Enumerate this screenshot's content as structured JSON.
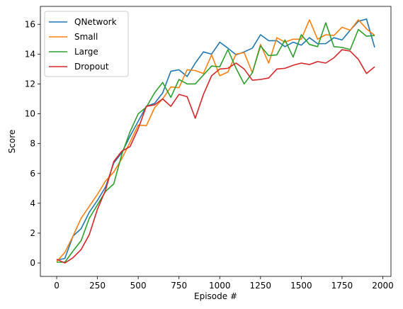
{
  "chart_data": {
    "type": "line",
    "title": "",
    "xlabel": "Episode #",
    "ylabel": "Score",
    "xlim": [
      -100,
      2050
    ],
    "ylim": [
      -0.9,
      17.2
    ],
    "xticks": [
      0,
      250,
      500,
      750,
      1000,
      1250,
      1500,
      1750,
      2000
    ],
    "yticks": [
      0,
      2,
      4,
      6,
      8,
      10,
      12,
      14,
      16
    ],
    "grid": false,
    "legend_position": "top-left",
    "x": [
      0,
      50,
      100,
      150,
      200,
      250,
      300,
      350,
      400,
      450,
      500,
      550,
      600,
      650,
      700,
      750,
      800,
      850,
      900,
      950,
      1000,
      1050,
      1100,
      1150,
      1200,
      1250,
      1300,
      1350,
      1400,
      1450,
      1500,
      1550,
      1600,
      1650,
      1700,
      1750,
      1800,
      1850,
      1900,
      1950
    ],
    "series": [
      {
        "name": "QNetwork",
        "color": "#1f77b4",
        "values": [
          0.2,
          0.3,
          1.8,
          2.3,
          3.4,
          4.2,
          5.1,
          6.7,
          7.4,
          8.5,
          9.5,
          10.5,
          10.7,
          11.4,
          12.85,
          12.95,
          12.5,
          13.4,
          14.15,
          14.0,
          14.8,
          14.4,
          13.95,
          14.15,
          14.4,
          15.3,
          14.9,
          14.9,
          14.5,
          14.8,
          14.6,
          15.1,
          14.7,
          14.7,
          15.1,
          14.95,
          15.6,
          16.2,
          16.35,
          14.45
        ]
      },
      {
        "name": "Small",
        "color": "#ff7f0e",
        "values": [
          0.1,
          0.7,
          1.8,
          3.0,
          3.8,
          4.6,
          5.5,
          6.1,
          7.0,
          8.1,
          9.25,
          9.2,
          10.4,
          11.0,
          11.8,
          11.75,
          12.95,
          12.9,
          12.7,
          13.95,
          12.55,
          12.8,
          14.0,
          14.1,
          12.75,
          14.65,
          13.4,
          15.1,
          14.8,
          15.0,
          15.0,
          16.3,
          15.0,
          15.3,
          15.25,
          15.8,
          15.6,
          16.3,
          15.7,
          15.25
        ]
      },
      {
        "name": "Large",
        "color": "#2ca02c",
        "values": [
          0.05,
          0.05,
          0.8,
          1.5,
          3.0,
          3.9,
          4.8,
          5.3,
          7.3,
          8.8,
          10.0,
          10.45,
          11.4,
          12.1,
          11.1,
          12.3,
          12.0,
          12.0,
          12.6,
          13.2,
          13.15,
          14.3,
          13.05,
          12.0,
          12.75,
          14.55,
          13.9,
          13.95,
          14.95,
          13.8,
          15.3,
          14.65,
          14.5,
          16.1,
          14.5,
          14.45,
          14.3,
          15.65,
          15.2,
          15.25
        ]
      },
      {
        "name": "Dropout",
        "color": "#d62728",
        "values": [
          0.25,
          0.0,
          0.35,
          0.9,
          1.9,
          3.6,
          4.9,
          6.8,
          7.5,
          7.8,
          9.0,
          10.5,
          10.6,
          11.0,
          10.5,
          11.3,
          11.15,
          9.7,
          11.3,
          12.55,
          13.0,
          13.05,
          13.4,
          13.0,
          12.25,
          12.3,
          12.4,
          13.0,
          13.05,
          13.25,
          13.4,
          13.3,
          13.5,
          13.4,
          13.75,
          14.3,
          14.2,
          13.65,
          12.7,
          13.15
        ]
      }
    ]
  }
}
